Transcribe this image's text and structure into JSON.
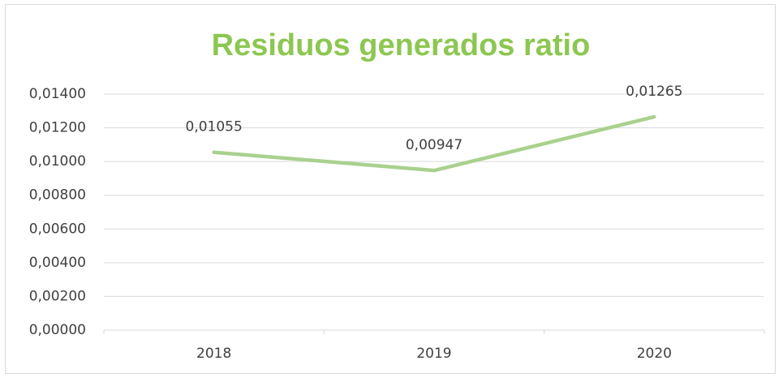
{
  "chart_data": {
    "type": "line",
    "title": "Residuos generados ratio",
    "categories": [
      "2018",
      "2019",
      "2020"
    ],
    "values": [
      0.01055,
      0.00947,
      0.01265
    ],
    "value_labels": [
      "0,01055",
      "0,00947",
      "0,01265"
    ],
    "color": "#a9d18e",
    "ylim": [
      0,
      0.014
    ],
    "yticks": [
      {
        "value": 0,
        "label": "0,00000"
      },
      {
        "value": 0.002,
        "label": "0,00200"
      },
      {
        "value": 0.004,
        "label": "0,00400"
      },
      {
        "value": 0.006,
        "label": "0,00600"
      },
      {
        "value": 0.008,
        "label": "0,00800"
      },
      {
        "value": 0.01,
        "label": "0,01000"
      },
      {
        "value": 0.012,
        "label": "0,01200"
      },
      {
        "value": 0.014,
        "label": "0,01400"
      }
    ],
    "grid": true
  }
}
